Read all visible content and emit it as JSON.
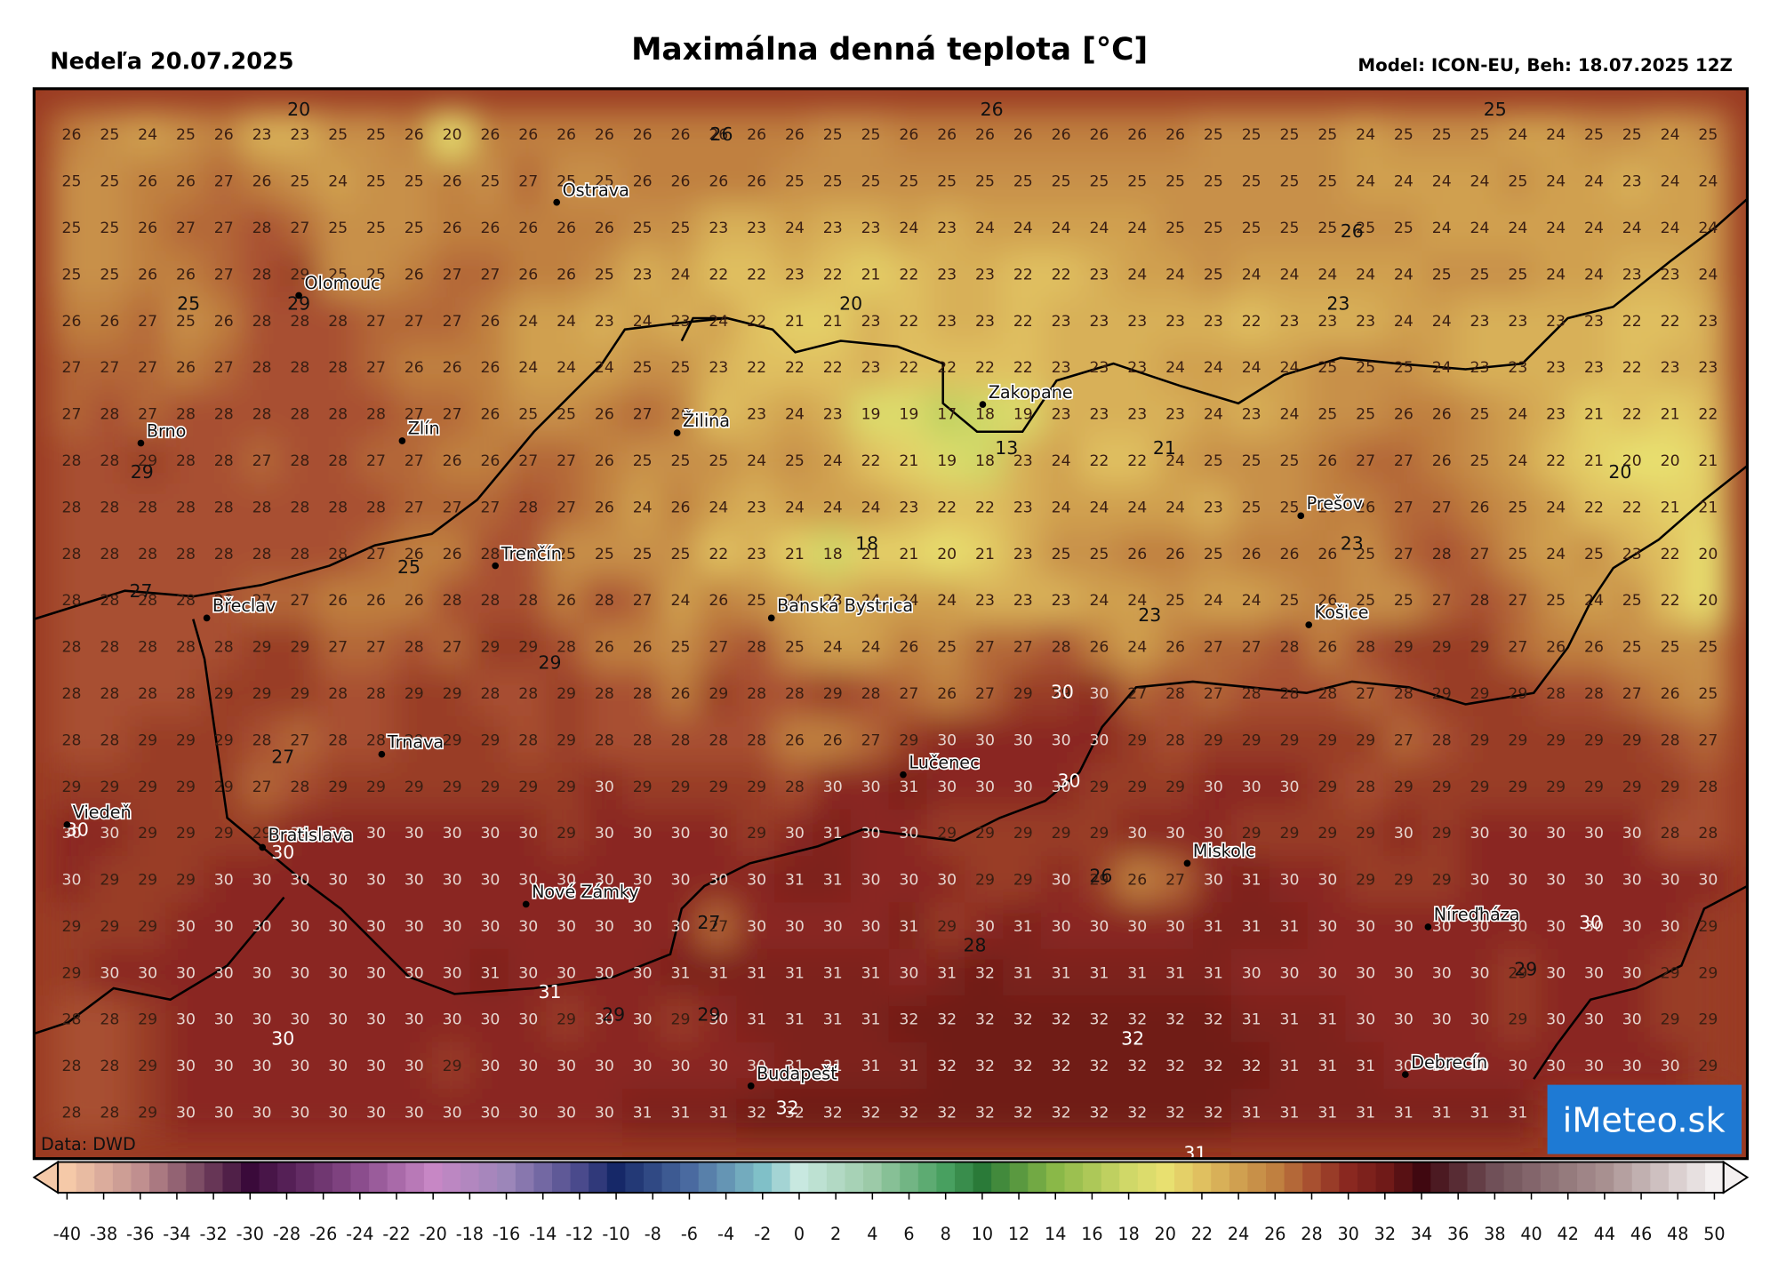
{
  "header": {
    "date": "Nedeľa 20.07.2025",
    "title": "Maximálna denná teplota [°C]",
    "model": "Model: ICON-EU, Beh: 18.07.2025 12Z"
  },
  "source": "Data: DWD",
  "logo": "iMeteo.sk",
  "grid": [
    [
      26,
      25,
      24,
      25,
      26,
      23,
      23,
      25,
      25,
      26,
      20,
      26,
      26,
      26,
      26,
      26,
      26,
      26,
      26,
      26,
      25,
      25,
      26,
      26,
      26,
      26,
      26,
      26,
      26,
      26,
      25,
      25,
      25,
      25,
      24,
      25,
      25,
      25,
      24,
      24,
      25,
      25,
      24,
      25
    ],
    [
      25,
      25,
      26,
      26,
      27,
      26,
      25,
      24,
      25,
      25,
      26,
      25,
      27,
      25,
      25,
      26,
      26,
      26,
      26,
      25,
      25,
      25,
      25,
      25,
      25,
      25,
      25,
      25,
      25,
      25,
      25,
      25,
      25,
      25,
      24,
      24,
      24,
      24,
      25,
      24,
      24,
      23,
      24,
      24
    ],
    [
      25,
      25,
      26,
      27,
      27,
      28,
      27,
      25,
      25,
      25,
      26,
      26,
      26,
      26,
      26,
      25,
      25,
      23,
      23,
      24,
      23,
      23,
      24,
      23,
      24,
      24,
      24,
      24,
      24,
      25,
      25,
      25,
      25,
      25,
      25,
      25,
      24,
      24,
      24,
      24,
      24,
      24,
      24,
      24
    ],
    [
      25,
      25,
      26,
      26,
      27,
      28,
      29,
      25,
      25,
      26,
      27,
      27,
      26,
      26,
      25,
      23,
      24,
      22,
      22,
      23,
      22,
      21,
      22,
      23,
      23,
      22,
      22,
      23,
      24,
      24,
      25,
      24,
      24,
      24,
      24,
      24,
      25,
      25,
      25,
      24,
      24,
      23,
      23,
      24
    ],
    [
      26,
      26,
      27,
      25,
      26,
      28,
      28,
      28,
      27,
      27,
      27,
      26,
      24,
      24,
      23,
      24,
      23,
      24,
      22,
      21,
      21,
      23,
      22,
      23,
      23,
      22,
      23,
      23,
      23,
      23,
      23,
      22,
      23,
      23,
      23,
      24,
      24,
      23,
      23,
      23,
      23,
      22,
      22,
      23
    ],
    [
      27,
      27,
      27,
      26,
      27,
      28,
      28,
      28,
      27,
      26,
      26,
      26,
      24,
      24,
      24,
      25,
      25,
      23,
      22,
      22,
      22,
      23,
      22,
      22,
      22,
      22,
      23,
      23,
      23,
      24,
      24,
      24,
      24,
      25,
      25,
      25,
      24,
      23,
      23,
      23,
      23,
      22,
      23,
      23
    ],
    [
      27,
      28,
      27,
      28,
      28,
      28,
      28,
      28,
      28,
      27,
      27,
      26,
      25,
      25,
      26,
      27,
      26,
      22,
      23,
      24,
      23,
      19,
      19,
      17,
      18,
      19,
      23,
      23,
      23,
      23,
      24,
      23,
      24,
      25,
      25,
      26,
      26,
      25,
      24,
      23,
      21,
      22,
      21,
      22
    ],
    [
      28,
      28,
      29,
      28,
      28,
      27,
      28,
      28,
      27,
      27,
      26,
      26,
      27,
      27,
      26,
      25,
      25,
      25,
      24,
      25,
      24,
      22,
      21,
      19,
      18,
      23,
      24,
      22,
      22,
      24,
      25,
      25,
      25,
      26,
      27,
      27,
      26,
      25,
      24,
      22,
      21,
      20,
      20,
      21
    ],
    [
      28,
      28,
      28,
      28,
      28,
      28,
      28,
      28,
      28,
      27,
      27,
      27,
      28,
      27,
      26,
      24,
      26,
      24,
      23,
      24,
      24,
      24,
      23,
      22,
      22,
      23,
      24,
      24,
      24,
      24,
      23,
      25,
      25,
      26,
      26,
      27,
      27,
      26,
      25,
      24,
      22,
      22,
      21,
      21
    ],
    [
      28,
      28,
      28,
      28,
      28,
      28,
      28,
      28,
      27,
      26,
      26,
      28,
      28,
      25,
      25,
      25,
      25,
      22,
      23,
      21,
      18,
      21,
      21,
      20,
      21,
      23,
      25,
      25,
      26,
      26,
      25,
      26,
      26,
      26,
      25,
      27,
      28,
      27,
      25,
      24,
      25,
      23,
      22,
      20
    ],
    [
      28,
      28,
      28,
      28,
      28,
      27,
      27,
      26,
      26,
      26,
      28,
      28,
      28,
      26,
      28,
      27,
      24,
      26,
      25,
      24,
      23,
      24,
      24,
      24,
      23,
      23,
      23,
      24,
      24,
      25,
      24,
      24,
      25,
      26,
      25,
      25,
      27,
      28,
      27,
      25,
      24,
      25,
      22,
      20
    ],
    [
      28,
      28,
      28,
      28,
      28,
      29,
      29,
      27,
      27,
      28,
      27,
      29,
      29,
      28,
      26,
      26,
      25,
      27,
      28,
      25,
      24,
      24,
      26,
      25,
      27,
      27,
      28,
      26,
      24,
      26,
      27,
      27,
      28,
      26,
      28,
      29,
      29,
      29,
      27,
      26,
      26,
      25,
      25,
      25
    ],
    [
      28,
      28,
      28,
      28,
      29,
      29,
      29,
      28,
      28,
      29,
      29,
      28,
      28,
      29,
      28,
      28,
      26,
      29,
      28,
      28,
      29,
      28,
      27,
      26,
      27,
      29,
      29,
      30,
      27,
      28,
      27,
      28,
      28,
      28,
      27,
      28,
      29,
      29,
      29,
      28,
      28,
      27,
      26,
      25
    ],
    [
      28,
      28,
      29,
      29,
      29,
      28,
      27,
      28,
      28,
      29,
      29,
      29,
      28,
      29,
      28,
      28,
      28,
      28,
      28,
      26,
      26,
      27,
      29,
      30,
      30,
      30,
      30,
      30,
      29,
      28,
      29,
      29,
      29,
      29,
      29,
      27,
      28,
      29,
      29,
      29,
      29,
      29,
      28,
      27
    ],
    [
      29,
      29,
      29,
      29,
      29,
      27,
      28,
      29,
      29,
      29,
      29,
      29,
      29,
      29,
      30,
      29,
      29,
      29,
      29,
      28,
      30,
      30,
      31,
      30,
      30,
      30,
      30,
      29,
      29,
      29,
      30,
      30,
      30,
      29,
      28,
      29,
      29,
      29,
      29,
      29,
      29,
      29,
      29,
      28
    ],
    [
      30,
      30,
      29,
      29,
      29,
      29,
      30,
      30,
      30,
      30,
      30,
      30,
      30,
      29,
      30,
      30,
      30,
      30,
      29,
      30,
      31,
      30,
      30,
      29,
      29,
      29,
      29,
      29,
      30,
      30,
      30,
      29,
      29,
      29,
      29,
      30,
      29,
      30,
      30,
      30,
      30,
      30,
      28,
      28
    ],
    [
      30,
      29,
      29,
      29,
      30,
      30,
      30,
      30,
      30,
      30,
      30,
      30,
      30,
      30,
      30,
      30,
      30,
      30,
      30,
      31,
      31,
      30,
      30,
      30,
      29,
      29,
      30,
      29,
      26,
      27,
      30,
      31,
      30,
      30,
      29,
      29,
      29,
      30,
      30,
      30,
      30,
      30,
      30,
      30
    ],
    [
      29,
      29,
      29,
      30,
      30,
      30,
      30,
      30,
      30,
      30,
      30,
      30,
      30,
      30,
      30,
      30,
      30,
      27,
      30,
      30,
      30,
      30,
      31,
      29,
      30,
      31,
      30,
      30,
      30,
      30,
      31,
      31,
      31,
      30,
      30,
      30,
      30,
      30,
      30,
      30,
      30,
      30,
      30,
      29
    ],
    [
      29,
      30,
      30,
      30,
      30,
      30,
      30,
      30,
      30,
      30,
      30,
      31,
      30,
      30,
      30,
      30,
      31,
      31,
      31,
      31,
      31,
      31,
      30,
      31,
      32,
      31,
      31,
      31,
      31,
      31,
      31,
      30,
      30,
      30,
      30,
      30,
      30,
      30,
      29,
      30,
      30,
      30,
      29,
      29
    ],
    [
      28,
      28,
      29,
      30,
      30,
      30,
      30,
      30,
      30,
      30,
      30,
      30,
      30,
      29,
      30,
      30,
      29,
      30,
      31,
      31,
      31,
      31,
      32,
      32,
      32,
      32,
      32,
      32,
      32,
      32,
      32,
      31,
      31,
      31,
      30,
      30,
      30,
      30,
      29,
      30,
      30,
      30,
      29,
      29
    ],
    [
      28,
      28,
      29,
      30,
      30,
      30,
      30,
      30,
      30,
      30,
      29,
      30,
      30,
      30,
      30,
      30,
      30,
      30,
      30,
      31,
      31,
      31,
      31,
      32,
      32,
      32,
      32,
      32,
      32,
      32,
      32,
      32,
      31,
      31,
      31,
      30,
      30,
      30,
      30,
      30,
      30,
      30,
      30,
      29
    ],
    [
      28,
      28,
      29,
      30,
      30,
      30,
      30,
      30,
      30,
      30,
      30,
      30,
      30,
      30,
      30,
      31,
      31,
      31,
      32,
      32,
      32,
      32,
      32,
      32,
      32,
      32,
      32,
      32,
      32,
      32,
      32,
      31,
      31,
      31,
      31,
      31,
      31,
      31,
      31
    ]
  ],
  "extrema": [
    20,
    26,
    26,
    25,
    25,
    29,
    26,
    20,
    23,
    29,
    21,
    13,
    20,
    18,
    23,
    25,
    27,
    23,
    29,
    30,
    27,
    30,
    30,
    30,
    26,
    27,
    30,
    28,
    29,
    31,
    29,
    29,
    30,
    32,
    32,
    31
  ],
  "cities": [
    "Ostrava",
    "Olomouc",
    "Brno",
    "Zlín",
    "Žilina",
    "Zakopane",
    "Prešov",
    "Trenčín",
    "Břeclav",
    "Banská Bystrica",
    "Košice",
    "Trnava",
    "Lučenec",
    "Viedeň",
    "Bratislava",
    "Miskolc",
    "Nové Zámky",
    "Níreďháza",
    "Debrecín",
    "Budapešť"
  ],
  "colorbar": {
    "ticks": [
      -40,
      -38,
      -36,
      -34,
      -32,
      -30,
      -28,
      -26,
      -24,
      -22,
      -20,
      -18,
      -16,
      -14,
      -12,
      -10,
      -8,
      -6,
      -4,
      -2,
      0,
      2,
      4,
      6,
      8,
      10,
      12,
      14,
      16,
      18,
      20,
      22,
      24,
      26,
      28,
      30,
      32,
      34,
      36,
      38,
      40,
      42,
      44,
      46,
      48,
      50
    ]
  }
}
